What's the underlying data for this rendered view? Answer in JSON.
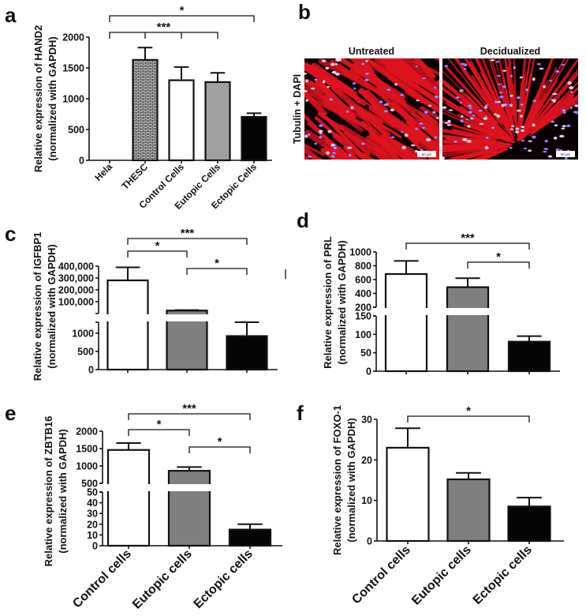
{
  "figure": {
    "panels": [
      "a",
      "b",
      "c",
      "d",
      "e",
      "f"
    ]
  },
  "colors": {
    "white_bar": "#ffffff",
    "grey_bar_a": "#a0a0a0",
    "grey_bar": "#7f7f7f",
    "black_bar": "#050505",
    "hatch_bg": "#c8c8c8",
    "hatch_line": "#3a3a3a",
    "axis": "#111111",
    "tubulin_red": "#e0141e",
    "dapi_blue": "#7a6cff"
  },
  "panel_b": {
    "letter": "b",
    "row_label": "Tubulin + DAPI",
    "images": [
      {
        "title": "Untreated",
        "scale_bar": "50 µm"
      },
      {
        "title": "Decidualized",
        "scale_bar": "50 µm"
      }
    ]
  },
  "chart_data": [
    {
      "panel": "a",
      "type": "bar",
      "title": "",
      "xlabel": "",
      "ylabel": "Relative expression of HAND2",
      "ylabel2": "(normalized with GAPDH)",
      "categories": [
        "Hela",
        "THESC",
        "Control Cells",
        "Eutopic Cells",
        "Ectopic Cells"
      ],
      "values": [
        0,
        1630,
        1300,
        1270,
        705
      ],
      "errors": [
        0,
        200,
        215,
        150,
        60
      ],
      "fills": [
        "none",
        "hatch",
        "#ffffff",
        "#a0a0a0",
        "#050505"
      ],
      "ylim": [
        0,
        2000
      ],
      "yticks": [
        0,
        500,
        1000,
        1500,
        2000
      ],
      "ytick_labels": [
        "0",
        "500",
        "1000",
        "1500",
        "2000"
      ],
      "grid": false,
      "significance": [
        {
          "from": 0,
          "to": 4,
          "label": "*"
        },
        {
          "from": 0,
          "to": 3,
          "label": "***",
          "mid_ticks": [
            1,
            2
          ]
        }
      ]
    },
    {
      "panel": "c",
      "type": "bar",
      "broken_axis": true,
      "ylabel": "Relative expression of IGFBP1",
      "ylabel2": "(normalized with GAPDH)",
      "categories": [
        "Control cells",
        "Eutopic cells",
        "Ectopic cells"
      ],
      "values": [
        280000,
        25000,
        920
      ],
      "errors": [
        110000,
        4000,
        380
      ],
      "fills": [
        "#ffffff",
        "#7f7f7f",
        "#050505"
      ],
      "lower_segment": {
        "ylim": [
          0,
          1300
        ],
        "yticks": [
          0,
          500,
          1000
        ],
        "ytick_labels": [
          "0",
          "500",
          "1000"
        ]
      },
      "upper_segment": {
        "ylim": [
          0,
          400000
        ],
        "yticks": [
          100000,
          200000,
          300000,
          400000
        ],
        "ytick_labels": [
          "100,000",
          "200,000",
          "300,000",
          "400,000"
        ]
      },
      "significance": [
        {
          "from": 0,
          "to": 2,
          "label": "***"
        },
        {
          "from": 0,
          "to": 1,
          "label": "*"
        },
        {
          "from": 1,
          "to": 2,
          "label": "*"
        }
      ]
    },
    {
      "panel": "d",
      "type": "bar",
      "broken_axis": true,
      "ylabel": "Relative expression of PRL",
      "ylabel2": "(normalized with GAPDH)",
      "categories": [
        "Control cells",
        "Eutopic cells",
        "Ectopic cells"
      ],
      "values": [
        680,
        490,
        80
      ],
      "errors": [
        190,
        130,
        15
      ],
      "fills": [
        "#ffffff",
        "#7f7f7f",
        "#050505"
      ],
      "lower_segment": {
        "ylim": [
          0,
          150
        ],
        "yticks": [
          0,
          50,
          100,
          150
        ],
        "ytick_labels": [
          "0",
          "50",
          "100",
          "150"
        ]
      },
      "upper_segment": {
        "ylim": [
          200,
          1000
        ],
        "yticks": [
          200,
          400,
          600,
          800,
          1000
        ],
        "ytick_labels": [
          "200",
          "400",
          "600",
          "800",
          "1000"
        ]
      },
      "significance": [
        {
          "from": 0,
          "to": 2,
          "label": "***"
        },
        {
          "from": 1,
          "to": 2,
          "label": "*"
        }
      ]
    },
    {
      "panel": "e",
      "type": "bar",
      "broken_axis": true,
      "ylabel": "Relative expression of ZBTB16",
      "ylabel2": "(normalized with GAPDH)",
      "categories": [
        "Control cells",
        "Eutopic cells",
        "Ectopic cells"
      ],
      "values": [
        1460,
        860,
        15
      ],
      "errors": [
        200,
        110,
        5
      ],
      "fills": [
        "#ffffff",
        "#7f7f7f",
        "#050505"
      ],
      "lower_segment": {
        "ylim": [
          0,
          50
        ],
        "yticks": [
          0,
          10,
          20,
          30,
          40,
          50
        ],
        "ytick_labels": [
          "0",
          "10",
          "20",
          "30",
          "40",
          "50"
        ]
      },
      "upper_segment": {
        "ylim": [
          500,
          2000
        ],
        "yticks": [
          500,
          1000,
          1500,
          2000
        ],
        "ytick_labels": [
          "500",
          "1000",
          "1500",
          "2000"
        ]
      },
      "significance": [
        {
          "from": 0,
          "to": 2,
          "label": "***"
        },
        {
          "from": 0,
          "to": 1,
          "label": "*"
        },
        {
          "from": 1,
          "to": 2,
          "label": "*"
        }
      ]
    },
    {
      "panel": "f",
      "type": "bar",
      "ylabel": "Relative expression of FOXO-1",
      "ylabel2": "(normalized with GAPDH)",
      "categories": [
        "Control cells",
        "Eutopic cells",
        "Ectopic cells"
      ],
      "values": [
        23,
        15.2,
        8.5
      ],
      "errors": [
        4.8,
        1.6,
        2.2
      ],
      "fills": [
        "#ffffff",
        "#7f7f7f",
        "#050505"
      ],
      "ylim": [
        0,
        30
      ],
      "yticks": [
        0,
        10,
        20,
        30
      ],
      "ytick_labels": [
        "0",
        "10",
        "20",
        "30"
      ],
      "grid": false,
      "significance": [
        {
          "from": 0,
          "to": 2,
          "label": "*"
        }
      ]
    }
  ]
}
